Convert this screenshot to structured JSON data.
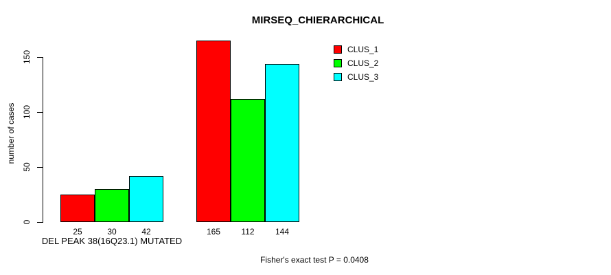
{
  "chart_data": {
    "type": "bar",
    "title": "MIRSEQ_CHIERARCHICAL",
    "ylabel": "number of cases",
    "xlabel": "",
    "categories": [
      "DEL PEAK 38(16Q23.1) MUTATED",
      ""
    ],
    "series": [
      {
        "name": "CLUS_1",
        "color": "#FF0000",
        "values": [
          25,
          165
        ]
      },
      {
        "name": "CLUS_2",
        "color": "#00FF00",
        "values": [
          30,
          112
        ]
      },
      {
        "name": "CLUS_3",
        "color": "#00FFFF",
        "values": [
          42,
          144
        ]
      }
    ],
    "bar_value_labels": [
      [
        "25",
        "30",
        "42"
      ],
      [
        "165",
        "112",
        "144"
      ]
    ],
    "yticks": [
      0,
      50,
      100,
      150
    ],
    "ylim": [
      0,
      165
    ],
    "grid": false,
    "legend_position": "top-right",
    "annotation": "Fisher's exact test P = 0.0408"
  }
}
